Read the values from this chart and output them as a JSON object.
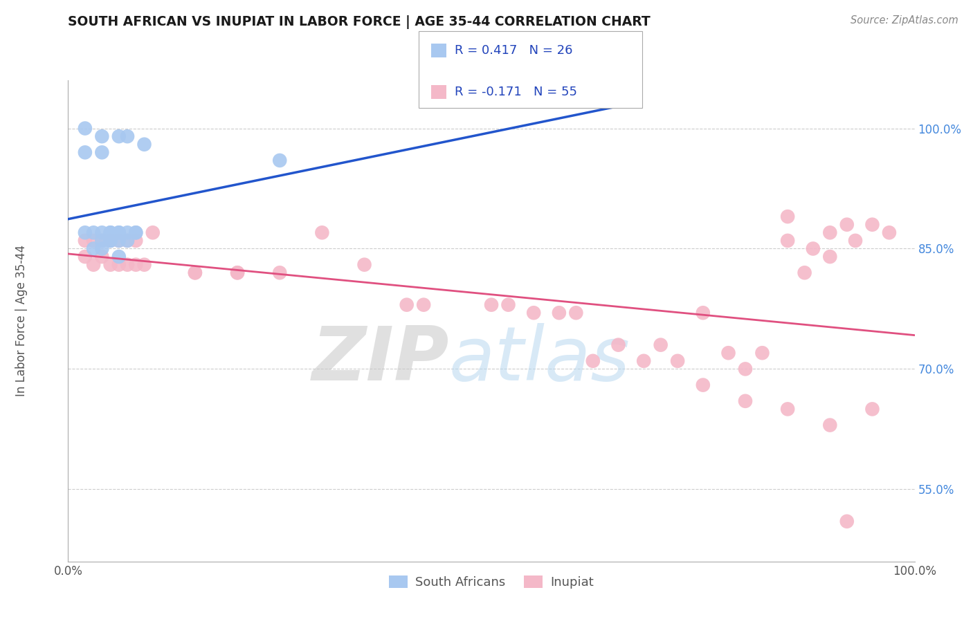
{
  "title": "SOUTH AFRICAN VS INUPIAT IN LABOR FORCE | AGE 35-44 CORRELATION CHART",
  "source": "Source: ZipAtlas.com",
  "ylabel": "In Labor Force | Age 35-44",
  "ytick_labels": [
    "55.0%",
    "70.0%",
    "85.0%",
    "100.0%"
  ],
  "ytick_values": [
    0.55,
    0.7,
    0.85,
    1.0
  ],
  "xlim": [
    0.0,
    1.0
  ],
  "ylim": [
    0.46,
    1.06
  ],
  "r_south_african": 0.417,
  "n_south_african": 26,
  "r_inupiat": -0.171,
  "n_inupiat": 55,
  "legend_label_1": "South Africans",
  "legend_label_2": "Inupiat",
  "color_south_african": "#a8c8f0",
  "color_inupiat": "#f4b8c8",
  "line_color_south_african": "#2255cc",
  "line_color_inupiat": "#e05080",
  "south_african_x": [
    0.02,
    0.02,
    0.04,
    0.04,
    0.05,
    0.05,
    0.06,
    0.06,
    0.07,
    0.07,
    0.08,
    0.09,
    0.02,
    0.03,
    0.03,
    0.04,
    0.04,
    0.04,
    0.05,
    0.05,
    0.06,
    0.06,
    0.06,
    0.07,
    0.08,
    0.25
  ],
  "south_african_y": [
    1.0,
    0.97,
    0.99,
    0.97,
    0.87,
    0.86,
    0.99,
    0.87,
    0.99,
    0.87,
    0.87,
    0.98,
    0.87,
    0.87,
    0.85,
    0.87,
    0.86,
    0.85,
    0.87,
    0.86,
    0.87,
    0.86,
    0.84,
    0.86,
    0.87,
    0.96
  ],
  "inupiat_x": [
    0.02,
    0.02,
    0.03,
    0.03,
    0.04,
    0.04,
    0.05,
    0.05,
    0.06,
    0.06,
    0.07,
    0.07,
    0.08,
    0.08,
    0.09,
    0.1,
    0.15,
    0.15,
    0.2,
    0.2,
    0.25,
    0.3,
    0.35,
    0.4,
    0.42,
    0.5,
    0.52,
    0.55,
    0.58,
    0.6,
    0.62,
    0.65,
    0.68,
    0.7,
    0.72,
    0.75,
    0.78,
    0.8,
    0.82,
    0.85,
    0.85,
    0.87,
    0.88,
    0.9,
    0.9,
    0.92,
    0.93,
    0.95,
    0.95,
    0.97,
    0.75,
    0.8,
    0.85,
    0.9,
    0.92
  ],
  "inupiat_y": [
    0.86,
    0.84,
    0.86,
    0.83,
    0.86,
    0.84,
    0.86,
    0.83,
    0.86,
    0.83,
    0.86,
    0.83,
    0.86,
    0.83,
    0.83,
    0.87,
    0.82,
    0.82,
    0.82,
    0.82,
    0.82,
    0.87,
    0.83,
    0.78,
    0.78,
    0.78,
    0.78,
    0.77,
    0.77,
    0.77,
    0.71,
    0.73,
    0.71,
    0.73,
    0.71,
    0.77,
    0.72,
    0.7,
    0.72,
    0.89,
    0.86,
    0.82,
    0.85,
    0.87,
    0.84,
    0.88,
    0.86,
    0.88,
    0.65,
    0.87,
    0.68,
    0.66,
    0.65,
    0.63,
    0.51
  ]
}
